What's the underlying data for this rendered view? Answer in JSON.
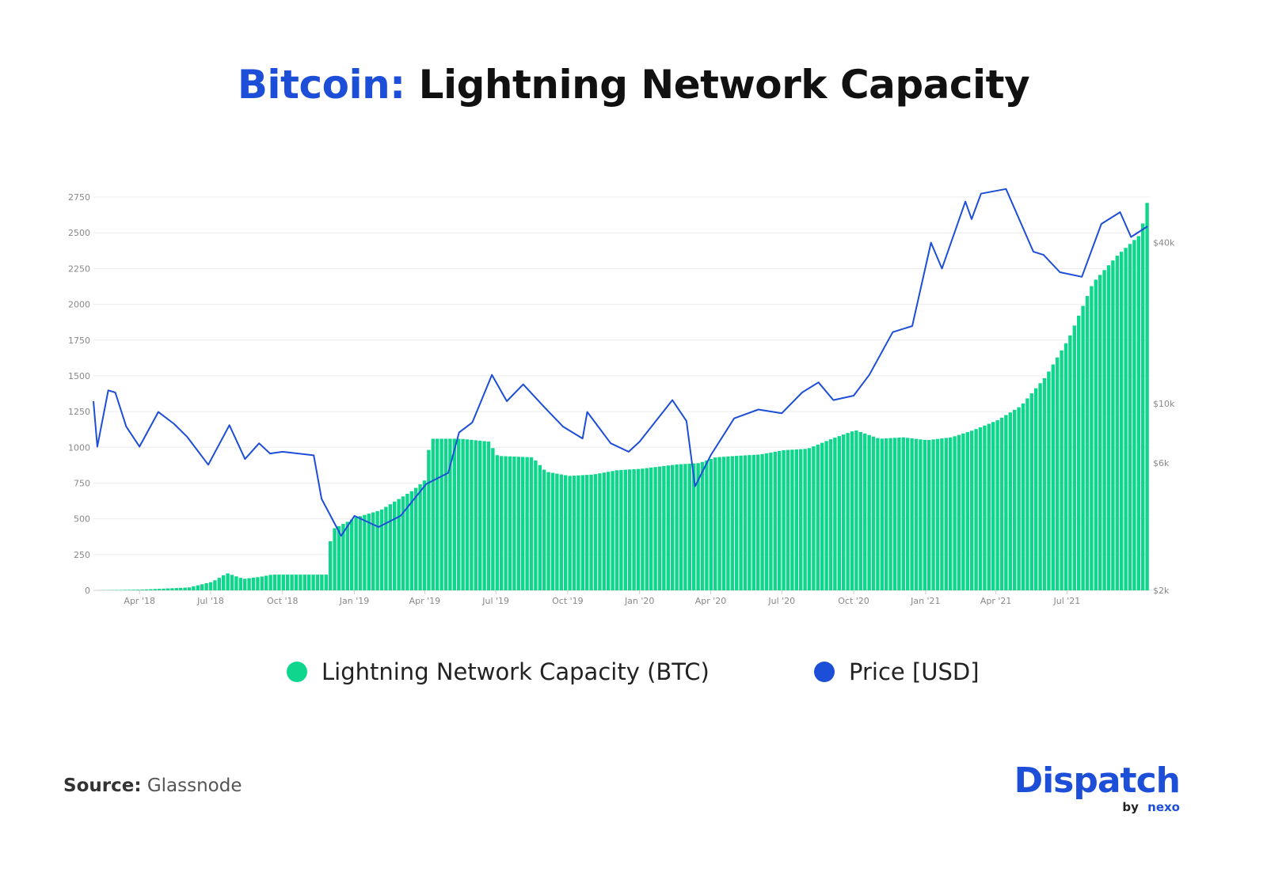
{
  "title": {
    "part1": "Bitcoin:",
    "part2": "Lightning Network Capacity"
  },
  "legend": [
    {
      "label": "Lightning Network Capacity (BTC)",
      "color": "#0ed68c"
    },
    {
      "label": "Price [USD]",
      "color": "#1d4ed8"
    }
  ],
  "source": {
    "label": "Source:",
    "value": "Glassnode"
  },
  "brand": {
    "name": "Dispatch",
    "by": "by",
    "partner": "nexo",
    "color": "#1d4ed8"
  },
  "chart_data": {
    "type": "area",
    "x_tick_labels": [
      "Apr '18",
      "Jul '18",
      "Oct '18",
      "Jan '19",
      "Apr '19",
      "Jul '19",
      "Oct '19",
      "Jan '20",
      "Apr '20",
      "Jul '20",
      "Oct '20",
      "Jan '21",
      "Apr '21",
      "Jul '21"
    ],
    "x_tick_dates": [
      "2018-04-01",
      "2018-07-01",
      "2018-10-01",
      "2019-01-01",
      "2019-04-01",
      "2019-07-01",
      "2019-10-01",
      "2020-01-01",
      "2020-04-01",
      "2020-07-01",
      "2020-10-01",
      "2021-01-01",
      "2021-04-01",
      "2021-07-01"
    ],
    "x_range": [
      "2018-02-01",
      "2021-10-15"
    ],
    "left_axis": {
      "ticks": [
        0,
        250,
        500,
        750,
        1000,
        1250,
        1500,
        1750,
        2000,
        2250,
        2500,
        2750
      ],
      "ylim": [
        0,
        2800
      ]
    },
    "right_axis": {
      "scale": "log",
      "tick_labels": [
        "$2k",
        "$6k",
        "$10k",
        "$40k"
      ],
      "tick_values": [
        2000,
        6000,
        10000,
        40000
      ],
      "ylim": [
        2000,
        63000
      ]
    },
    "grid": true,
    "legend_position": "bottom",
    "series": [
      {
        "name": "Lightning Network Capacity (BTC)",
        "axis": "left",
        "color": "#0ed68c",
        "points": [
          [
            "2018-02-01",
            0
          ],
          [
            "2018-04-01",
            5
          ],
          [
            "2018-06-01",
            20
          ],
          [
            "2018-07-01",
            60
          ],
          [
            "2018-07-20",
            120
          ],
          [
            "2018-08-10",
            80
          ],
          [
            "2018-09-01",
            95
          ],
          [
            "2018-09-15",
            110
          ],
          [
            "2018-11-26",
            110
          ],
          [
            "2018-11-27",
            300
          ],
          [
            "2018-12-03",
            430
          ],
          [
            "2019-01-01",
            510
          ],
          [
            "2019-02-01",
            560
          ],
          [
            "2019-03-15",
            700
          ],
          [
            "2019-04-01",
            780
          ],
          [
            "2019-04-05",
            1060
          ],
          [
            "2019-05-15",
            1060
          ],
          [
            "2019-06-20",
            1040
          ],
          [
            "2019-07-01",
            940
          ],
          [
            "2019-08-15",
            930
          ],
          [
            "2019-09-01",
            830
          ],
          [
            "2019-10-01",
            800
          ],
          [
            "2019-11-01",
            810
          ],
          [
            "2019-12-01",
            840
          ],
          [
            "2020-01-01",
            850
          ],
          [
            "2020-02-15",
            880
          ],
          [
            "2020-03-15",
            890
          ],
          [
            "2020-04-05",
            930
          ],
          [
            "2020-05-01",
            940
          ],
          [
            "2020-06-01",
            950
          ],
          [
            "2020-07-01",
            980
          ],
          [
            "2020-08-01",
            990
          ],
          [
            "2020-09-01",
            1060
          ],
          [
            "2020-10-01",
            1120
          ],
          [
            "2020-11-01",
            1060
          ],
          [
            "2020-12-01",
            1070
          ],
          [
            "2021-01-01",
            1050
          ],
          [
            "2021-02-01",
            1070
          ],
          [
            "2021-03-01",
            1120
          ],
          [
            "2021-04-01",
            1190
          ],
          [
            "2021-05-01",
            1290
          ],
          [
            "2021-06-01",
            1490
          ],
          [
            "2021-07-01",
            1760
          ],
          [
            "2021-08-01",
            2150
          ],
          [
            "2021-09-01",
            2340
          ],
          [
            "2021-10-01",
            2490
          ],
          [
            "2021-10-12",
            2780
          ]
        ]
      },
      {
        "name": "Price [USD]",
        "axis": "right",
        "color": "#1d4ed8",
        "points": [
          [
            "2018-02-01",
            10200
          ],
          [
            "2018-02-06",
            6900
          ],
          [
            "2018-02-20",
            11200
          ],
          [
            "2018-03-01",
            11000
          ],
          [
            "2018-03-15",
            8200
          ],
          [
            "2018-04-01",
            6900
          ],
          [
            "2018-04-25",
            9300
          ],
          [
            "2018-05-15",
            8400
          ],
          [
            "2018-06-01",
            7500
          ],
          [
            "2018-06-28",
            5900
          ],
          [
            "2018-07-25",
            8300
          ],
          [
            "2018-08-14",
            6200
          ],
          [
            "2018-09-01",
            7100
          ],
          [
            "2018-09-15",
            6500
          ],
          [
            "2018-10-01",
            6600
          ],
          [
            "2018-11-10",
            6400
          ],
          [
            "2018-11-20",
            4400
          ],
          [
            "2018-12-15",
            3200
          ],
          [
            "2019-01-01",
            3800
          ],
          [
            "2019-02-01",
            3450
          ],
          [
            "2019-03-01",
            3800
          ],
          [
            "2019-04-03",
            5000
          ],
          [
            "2019-05-01",
            5500
          ],
          [
            "2019-05-15",
            7800
          ],
          [
            "2019-06-01",
            8500
          ],
          [
            "2019-06-26",
            12800
          ],
          [
            "2019-07-15",
            10200
          ],
          [
            "2019-08-05",
            11800
          ],
          [
            "2019-09-01",
            9700
          ],
          [
            "2019-09-25",
            8200
          ],
          [
            "2019-10-20",
            7400
          ],
          [
            "2019-10-26",
            9300
          ],
          [
            "2019-11-25",
            7100
          ],
          [
            "2019-12-18",
            6600
          ],
          [
            "2020-01-01",
            7200
          ],
          [
            "2020-02-12",
            10300
          ],
          [
            "2020-03-01",
            8600
          ],
          [
            "2020-03-12",
            4900
          ],
          [
            "2020-04-01",
            6400
          ],
          [
            "2020-05-01",
            8800
          ],
          [
            "2020-06-01",
            9500
          ],
          [
            "2020-07-01",
            9200
          ],
          [
            "2020-07-27",
            11000
          ],
          [
            "2020-08-17",
            12000
          ],
          [
            "2020-09-05",
            10300
          ],
          [
            "2020-10-01",
            10700
          ],
          [
            "2020-10-21",
            12800
          ],
          [
            "2020-11-20",
            18500
          ],
          [
            "2020-12-15",
            19500
          ],
          [
            "2021-01-08",
            40000
          ],
          [
            "2021-01-22",
            32000
          ],
          [
            "2021-02-21",
            57000
          ],
          [
            "2021-03-01",
            49000
          ],
          [
            "2021-03-13",
            61000
          ],
          [
            "2021-04-14",
            63500
          ],
          [
            "2021-05-19",
            37000
          ],
          [
            "2021-06-01",
            36000
          ],
          [
            "2021-06-22",
            31000
          ],
          [
            "2021-07-20",
            29800
          ],
          [
            "2021-08-14",
            47000
          ],
          [
            "2021-09-07",
            52000
          ],
          [
            "2021-09-21",
            42000
          ],
          [
            "2021-10-12",
            46000
          ]
        ]
      }
    ]
  }
}
